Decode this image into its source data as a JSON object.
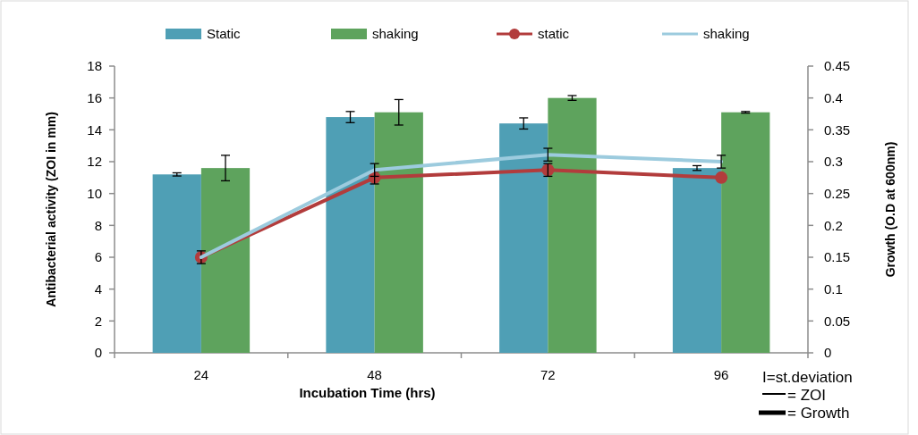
{
  "chart_data": {
    "type": "bar",
    "xlabel": "Incubation Time (hrs)",
    "ylabel": "Antibacterial activity (ZOI in mm)",
    "y2label": "Growth (O.D at 600nm)",
    "categories": [
      "24",
      "48",
      "72",
      "96"
    ],
    "series": [
      {
        "name": "Static",
        "color": "#4f9fb5",
        "values": [
          11.2,
          14.8,
          14.4,
          11.6
        ],
        "errors": [
          0.1,
          0.35,
          0.35,
          0.15
        ]
      },
      {
        "name": "shaking",
        "color": "#5ea35d",
        "values": [
          11.6,
          15.1,
          16.0,
          15.1
        ],
        "errors": [
          0.8,
          0.8,
          0.15,
          0.05
        ]
      },
      {
        "name": "static",
        "type": "line",
        "axis": "y2",
        "marker": "circle",
        "color": "#b23c3c",
        "values": [
          0.15,
          0.275,
          0.287,
          0.275
        ],
        "errors": [
          0.01,
          0.01,
          0.01,
          null
        ]
      },
      {
        "name": "shaking",
        "type": "line",
        "axis": "y2",
        "marker": "none",
        "color": "#9ccbde",
        "values": [
          0.15,
          0.287,
          0.311,
          0.3
        ],
        "errors": [
          null,
          0.01,
          0.01,
          0.01
        ]
      }
    ],
    "ylim": [
      0,
      18
    ],
    "yticks": [
      0,
      2,
      4,
      6,
      8,
      10,
      12,
      14,
      16,
      18
    ],
    "y2lim": [
      0,
      0.45
    ],
    "y2ticks": [
      0,
      0.05,
      0.1,
      0.15,
      0.2,
      0.25,
      0.3,
      0.35,
      0.4,
      0.45
    ],
    "grid": false,
    "legend": "top",
    "annotations": [
      "I=st.deviation",
      "= ZOI",
      "= Growth"
    ]
  }
}
